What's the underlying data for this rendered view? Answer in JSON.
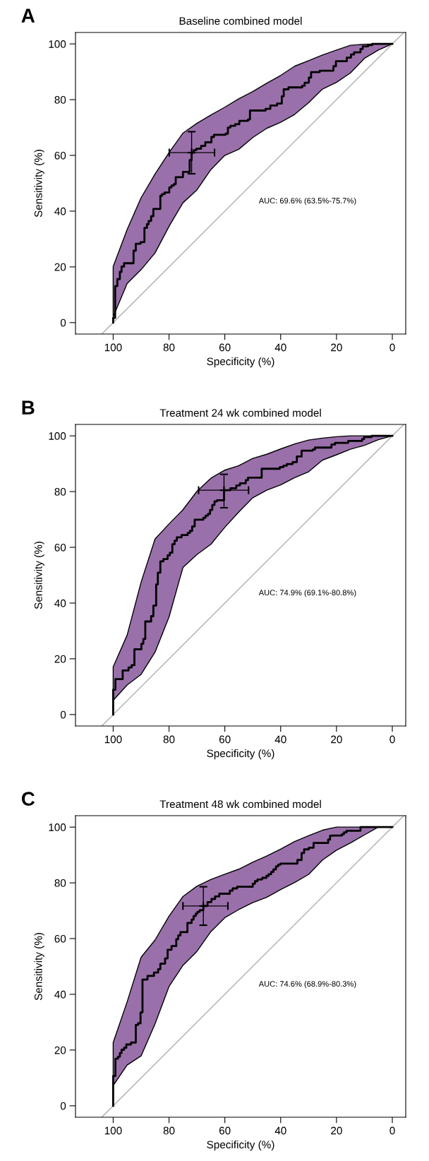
{
  "chart_data": [
    {
      "type": "line",
      "title": "Baseline combined model",
      "xlabel": "Specificity (%)",
      "ylabel": "Sensitivity (%)",
      "annotations": [
        "A",
        "AUC: 69.6% (63.5%-75.7%)"
      ],
      "xlim": [
        113.5,
        -4.8
      ],
      "ylim": [
        -4.1,
        104.1
      ],
      "xticks": [
        100,
        80,
        60,
        40,
        20,
        0
      ],
      "yticks": [
        0,
        20,
        40,
        60,
        80,
        100
      ],
      "grid": false,
      "legend": false,
      "series": [
        {
          "type": "area",
          "color": "#9a70ab",
          "x": [
            100,
            95,
            90,
            85,
            80,
            75,
            70,
            65,
            60,
            55,
            50,
            45,
            40,
            35,
            30,
            25,
            20,
            15,
            10,
            5,
            0
          ],
          "values": [
            null,
            null,
            null,
            null,
            null,
            null,
            null,
            null,
            null,
            null,
            null,
            null,
            null,
            null,
            null,
            null,
            null,
            null,
            null,
            null,
            null
          ],
          "lower": [
            2.1,
            14,
            19,
            25,
            34.5,
            43,
            47.6,
            54.9,
            60,
            62.2,
            66.4,
            69.7,
            71.9,
            74.7,
            78.9,
            83.8,
            86.2,
            89.6,
            94.8,
            97.8,
            100
          ],
          "upper": [
            20.1,
            33.4,
            44.8,
            53.3,
            61,
            68,
            71.5,
            74.5,
            77.3,
            80.3,
            82.9,
            85.9,
            88.7,
            92,
            94,
            96,
            97.8,
            99.5,
            99.9,
            100,
            100
          ]
        },
        {
          "type": "line",
          "color": "#b0b0b0",
          "x": [
            104,
            -4
          ],
          "values": [
            -4,
            104
          ]
        },
        {
          "type": "step",
          "color": "#000000",
          "x": [
            100,
            99.3,
            98.5,
            97.6,
            97.0,
            96.1,
            92.7,
            91.9,
            90.2,
            88.8,
            87.9,
            87.3,
            86.4,
            85.6,
            83.1,
            82.5,
            81.6,
            79.9,
            79.1,
            78.2,
            77.6,
            75.0,
            72.6,
            71.9,
            71.1,
            70.2,
            68.5,
            67.0,
            64.8,
            63.9,
            59.7,
            58.9,
            58.0,
            56.3,
            54.8,
            51.7,
            51.0,
            45.4,
            43.7,
            41.3,
            39.6,
            38.9,
            37.2,
            32.3,
            31.4,
            29.9,
            29.1,
            26.0,
            21.1,
            20.2,
            16.3,
            14.8,
            13.7,
            11.4,
            10.6,
            8.7,
            7.2,
            0
          ],
          "values": [
            0,
            1.7,
            13.1,
            15.6,
            18.2,
            20.1,
            21.3,
            25.8,
            28.3,
            28.9,
            34.0,
            35.3,
            36.5,
            38.2,
            40.8,
            45.5,
            46.1,
            46.7,
            48.5,
            49.2,
            49.7,
            52.2,
            54.1,
            58.3,
            61.0,
            61.9,
            62.4,
            63.4,
            64.7,
            66.6,
            67.4,
            67.8,
            70.0,
            70.6,
            71.2,
            72.4,
            72.9,
            76.1,
            76.7,
            77.9,
            78.6,
            81.2,
            83.7,
            84.4,
            85.0,
            86.1,
            87.9,
            89.9,
            90.4,
            92.0,
            93.8,
            95.1,
            96.2,
            97.0,
            98.2,
            99.1,
            99.6,
            100
          ]
        },
        {
          "type": "scatter",
          "color": "#000000",
          "x": [
            71.9
          ],
          "values": [
            61.0
          ],
          "marker": "cross",
          "errors": [
            [
              53.4,
              68.5
            ]
          ],
          "xerrors": [
            [
              63.7,
              79.9
            ]
          ]
        }
      ],
      "marker": "none"
    },
    {
      "type": "line",
      "title": "Treatment 24 wk combined model",
      "xlabel": "Specificity (%)",
      "ylabel": "Sensitivity (%)",
      "annotations": [
        "B",
        "AUC: 74.9% (69.1%-80.8%)"
      ],
      "xlim": [
        113.5,
        -4.8
      ],
      "ylim": [
        -4.1,
        104.1
      ],
      "xticks": [
        100,
        80,
        60,
        40,
        20,
        0
      ],
      "yticks": [
        0,
        20,
        40,
        60,
        80,
        100
      ],
      "grid": false,
      "legend": false,
      "series": [
        {
          "type": "area",
          "color": "#9a70ab",
          "x": [
            100,
            95,
            90,
            85,
            80,
            75,
            70,
            65,
            60,
            55,
            50,
            45,
            40,
            35,
            30,
            25,
            20,
            15,
            10,
            5,
            0
          ],
          "values": [
            null,
            null,
            null,
            null,
            null,
            null,
            null,
            null,
            null,
            null,
            null,
            null,
            null,
            null,
            null,
            null,
            null,
            null,
            null,
            null,
            null
          ],
          "lower": [
            5.1,
            10.6,
            14.4,
            22.4,
            35,
            52.8,
            57.4,
            61.1,
            67.2,
            72.7,
            77.8,
            80.5,
            82.4,
            85,
            87.1,
            91.3,
            93.2,
            95.2,
            96.6,
            98.6,
            100
          ],
          "upper": [
            17.1,
            28.5,
            47.5,
            63,
            68.4,
            73.5,
            80.1,
            84.8,
            87.7,
            89.3,
            91.9,
            93.4,
            95.3,
            97.1,
            98.5,
            99.2,
            99.7,
            100,
            100,
            100,
            100
          ]
        },
        {
          "type": "line",
          "color": "#b0b0b0",
          "x": [
            104,
            -4
          ],
          "values": [
            -4,
            104
          ]
        },
        {
          "type": "step",
          "color": "#000000",
          "x": [
            100,
            99.2,
            96.6,
            94.5,
            93.4,
            92.4,
            89.9,
            89.2,
            88.5,
            86.4,
            85.6,
            84.6,
            84.0,
            83.1,
            82.0,
            80.5,
            79.7,
            78.8,
            78.0,
            77.2,
            75.5,
            73.3,
            72.5,
            71.7,
            70.8,
            67.7,
            66.9,
            66.0,
            65.3,
            64.5,
            63.7,
            62.8,
            60.3,
            58.0,
            55.9,
            54.6,
            52.5,
            51.7,
            46.8,
            40.3,
            39.0,
            37.8,
            35.7,
            34.2,
            32.5,
            28.5,
            27.7,
            21.8,
            20.5,
            15.8,
            10.8,
            10.1,
            7.4,
            0
          ],
          "values": [
            0,
            8.9,
            12.7,
            15.8,
            16.9,
            17.7,
            23.4,
            25.4,
            27.1,
            33.4,
            35.3,
            39.1,
            46.7,
            50.9,
            55.0,
            55.8,
            57.1,
            58.1,
            61.1,
            62.4,
            63.6,
            64.4,
            65.2,
            65.9,
            67.5,
            69.9,
            70.6,
            71.4,
            72.0,
            73.4,
            75.2,
            76.5,
            76.9,
            80.5,
            81.2,
            82.2,
            83.0,
            84.1,
            85.0,
            88.2,
            88.8,
            89.3,
            89.9,
            90.6,
            92.6,
            94.7,
            95.1,
            95.8,
            96.9,
            97.5,
            98.2,
            98.9,
            99.6,
            100
          ]
        },
        {
          "type": "scatter",
          "color": "#000000",
          "x": [
            60.3
          ],
          "values": [
            80.5
          ],
          "marker": "cross",
          "errors": [
            [
              74.2,
              86.2
            ]
          ],
          "xerrors": [
            [
              51.5,
              69.4
            ]
          ]
        }
      ],
      "marker": "none"
    },
    {
      "type": "line",
      "title": "Treatment 48 wk combined model",
      "xlabel": "Specificity (%)",
      "ylabel": "Sensitivity (%)",
      "annotations": [
        "C",
        "AUC: 74.6% (68.9%-80.3%)"
      ],
      "xlim": [
        113.5,
        -4.8
      ],
      "ylim": [
        -4.1,
        104.1
      ],
      "xticks": [
        100,
        80,
        60,
        40,
        20,
        0
      ],
      "yticks": [
        0,
        20,
        40,
        60,
        80,
        100
      ],
      "grid": false,
      "legend": false,
      "series": [
        {
          "type": "area",
          "color": "#9a70ab",
          "x": [
            100,
            95,
            90,
            85,
            80,
            75,
            70,
            65,
            60,
            55,
            50,
            45,
            40,
            35,
            30,
            25,
            20,
            15,
            10,
            5,
            0
          ],
          "values": [
            null,
            null,
            null,
            null,
            null,
            null,
            null,
            null,
            null,
            null,
            null,
            null,
            null,
            null,
            null,
            null,
            null,
            null,
            null,
            null,
            null
          ],
          "lower": [
            7.3,
            14.6,
            17.9,
            29.4,
            42.8,
            50.4,
            55.4,
            62.5,
            67.5,
            70.4,
            72.9,
            74.8,
            77.6,
            80.1,
            83.0,
            88.2,
            91.7,
            94.3,
            97.2,
            100,
            100
          ],
          "upper": [
            22.7,
            37.3,
            53.3,
            59.5,
            68,
            75.1,
            78.8,
            81.2,
            83.1,
            84.9,
            87.4,
            89.6,
            92.1,
            94.8,
            96.9,
            98.9,
            100,
            100,
            100,
            100,
            100
          ]
        },
        {
          "type": "line",
          "color": "#b0b0b0",
          "x": [
            104,
            -4
          ],
          "values": [
            -4,
            104
          ]
        },
        {
          "type": "step",
          "color": "#000000",
          "x": [
            100,
            99.2,
            98.3,
            97.6,
            97.0,
            96.1,
            95.3,
            93.6,
            91.9,
            91.1,
            90.2,
            89.5,
            87.7,
            85.4,
            83.9,
            83.1,
            81.4,
            80.5,
            79.1,
            77.4,
            76.7,
            75.9,
            73.4,
            71.9,
            71.2,
            70.4,
            69.8,
            69.0,
            67.7,
            66.2,
            64.8,
            63.5,
            62.0,
            58.2,
            57.2,
            55.6,
            50.0,
            49.2,
            48.3,
            46.6,
            45.1,
            44.3,
            43.4,
            42.6,
            41.7,
            40.9,
            40.1,
            34.0,
            32.5,
            31.6,
            29.9,
            28.2,
            23.0,
            22.3,
            21.3,
            18.0,
            17.3,
            16.4,
            11.4,
            0
          ],
          "values": [
            0,
            10.7,
            16.9,
            17.6,
            18.9,
            20.1,
            20.8,
            22.0,
            22.7,
            29.0,
            29.6,
            33.5,
            45.3,
            46.6,
            47.8,
            49.0,
            51.0,
            52.9,
            56.0,
            57.3,
            59.8,
            61.1,
            62.3,
            65.6,
            66.8,
            68.1,
            69.0,
            69.6,
            70.2,
            71.7,
            73.1,
            74.2,
            75.1,
            76.1,
            77.2,
            78.0,
            78.6,
            79.7,
            80.6,
            81.2,
            81.8,
            82.5,
            83.1,
            83.9,
            84.8,
            85.9,
            86.5,
            86.9,
            88.2,
            90.7,
            92.0,
            92.6,
            94.3,
            95.5,
            96.9,
            97.0,
            97.5,
            98.1,
            98.7,
            100
          ]
        },
        {
          "type": "scatter",
          "color": "#000000",
          "x": [
            67.7
          ],
          "values": [
            71.7
          ],
          "marker": "cross",
          "errors": [
            [
              64.8,
              78.6
            ]
          ],
          "xerrors": [
            [
              58.9,
              75.0
            ]
          ]
        }
      ],
      "marker": "none"
    }
  ]
}
